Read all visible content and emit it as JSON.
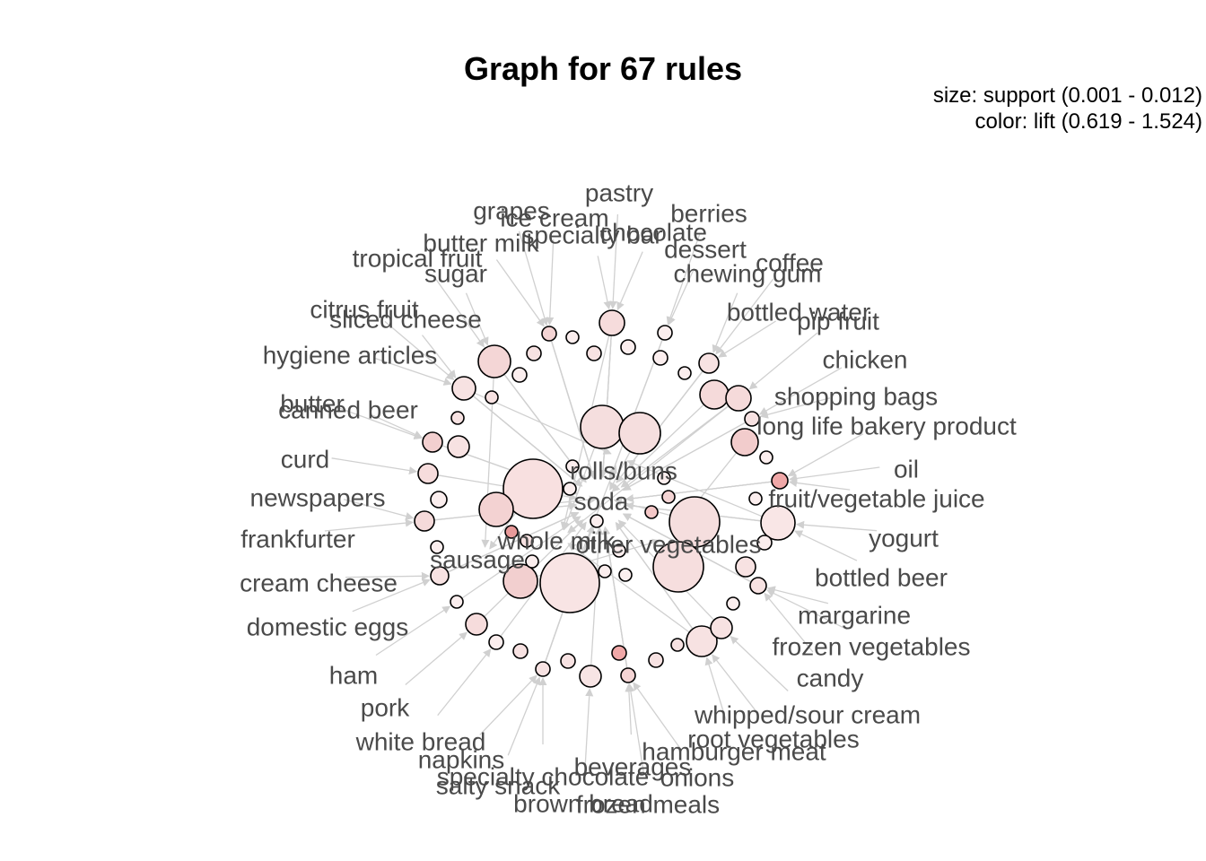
{
  "title": "Graph for 67 rules",
  "legend": {
    "size": "size: support (0.001 - 0.012)",
    "color": "color: lift (0.619 - 1.524)"
  },
  "graph": {
    "center_items": [
      "rolls/buns",
      "soda",
      "whole milk",
      "other vegetables",
      "sausage"
    ],
    "outer_items": [
      "pastry",
      "grapes",
      "ice cream",
      "berries",
      "specialty bar",
      "chocolate",
      "butter milk",
      "dessert",
      "tropical fruit",
      "coffee",
      "sugar",
      "chewing gum",
      "citrus fruit",
      "bottled water",
      "sliced cheese",
      "pip fruit",
      "hygiene articles",
      "chicken",
      "butter",
      "shopping bags",
      "canned beer",
      "long life bakery product",
      "curd",
      "oil",
      "newspapers",
      "fruit/vegetable juice",
      "frankfurter",
      "yogurt",
      "cream cheese",
      "bottled beer",
      "domestic eggs",
      "margarine",
      "frozen vegetables",
      "ham",
      "candy",
      "pork",
      "whipped/sour cream",
      "white bread",
      "root vegetables",
      "napkins",
      "hamburger meat",
      "specialty chocolate",
      "beverages",
      "onions",
      "salty snack",
      "brown bread",
      "frozen meals"
    ]
  }
}
